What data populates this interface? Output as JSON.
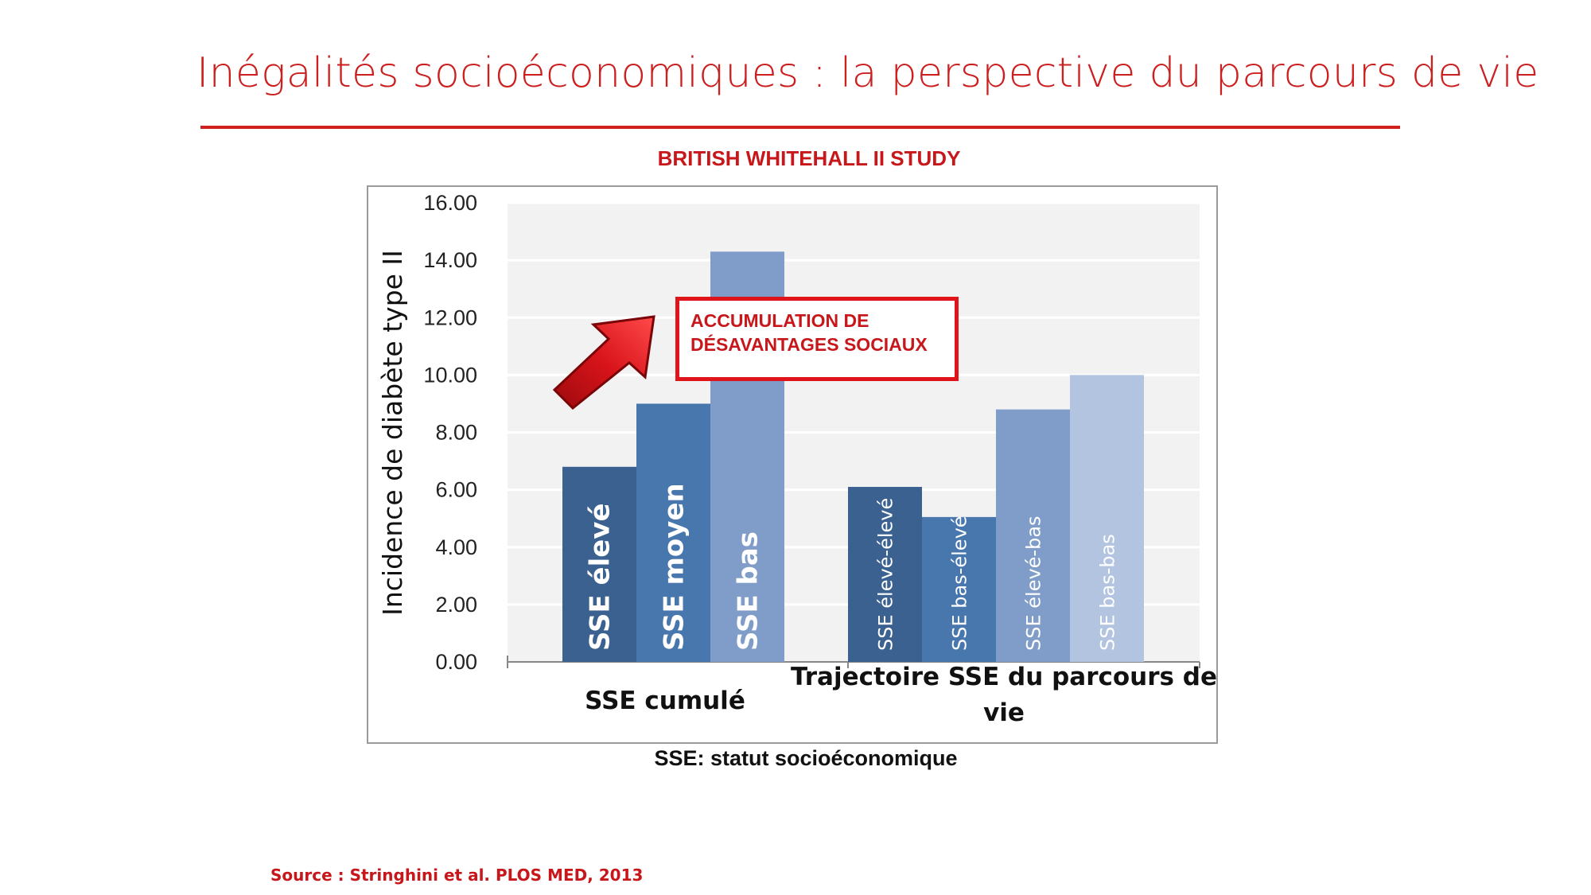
{
  "slide": {
    "title": "Inégalités socioéconomiques : la perspective du parcours de vie",
    "study_title": "BRITISH WHITEHALL II STUDY",
    "caption": "SSE: statut socioéconomique",
    "source": "Source : Stringhini et al. PLOS MED, 2013",
    "callout_line1": "ACCUMULATION DE",
    "callout_line2": "DÉSAVANTAGES SOCIAUX",
    "accent_color": "#cc1f1f",
    "arrow_color": "#d40d12",
    "arrow_icon": "arrow-up-right-icon"
  },
  "chart_data": {
    "type": "bar",
    "title": "BRITISH WHITEHALL II STUDY",
    "ylabel": "Incidence de diabète type II",
    "ylim": [
      0,
      16
    ],
    "yticks": [
      "0.00",
      "2.00",
      "4.00",
      "6.00",
      "8.00",
      "10.00",
      "12.00",
      "14.00",
      "16.00"
    ],
    "grid": true,
    "groups": [
      {
        "label": "SSE cumulé",
        "label_lines": [
          "SSE cumulé"
        ],
        "bars": [
          {
            "label": "SSE élevé",
            "value": 6.8,
            "color": "#3b6190",
            "bold": true
          },
          {
            "label": "SSE moyen",
            "value": 9.0,
            "color": "#4877ad",
            "bold": true
          },
          {
            "label": "SSE bas",
            "value": 14.3,
            "color": "#7f9dc8",
            "bold": true
          }
        ]
      },
      {
        "label": "Trajectoire SSE du parcours de vie",
        "label_lines": [
          "Trajectoire SSE du parcours de",
          "vie"
        ],
        "bars": [
          {
            "label": "SSE élevé-élevé",
            "value": 6.1,
            "color": "#3b6190",
            "bold": false
          },
          {
            "label": "SSE bas-élevé",
            "value": 5.05,
            "color": "#4877ad",
            "bold": false
          },
          {
            "label": "SSE élevé-bas",
            "value": 8.8,
            "color": "#7f9dc8",
            "bold": false
          },
          {
            "label": "SSE bas-bas",
            "value": 10.0,
            "color": "#b3c4e0",
            "bold": false
          }
        ]
      }
    ]
  }
}
